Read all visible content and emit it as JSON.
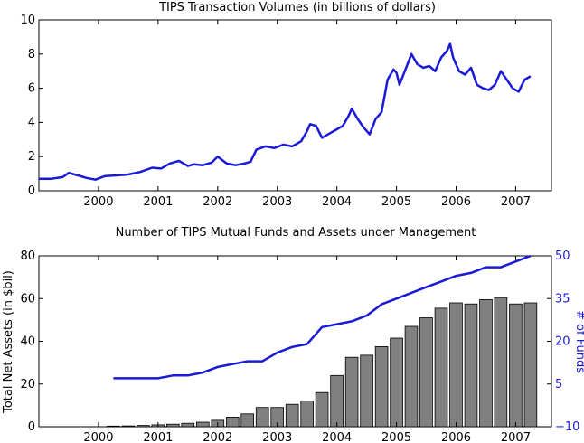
{
  "chart_data": [
    {
      "type": "line",
      "title": "TIPS Transaction Volumes (in billions of dollars)",
      "xlabel": "",
      "ylabel": "",
      "xlim": [
        1999.0,
        2007.6
      ],
      "ylim": [
        0,
        10
      ],
      "xticks": [
        2000,
        2001,
        2002,
        2003,
        2004,
        2005,
        2006,
        2007
      ],
      "xtick_labels": [
        "2000",
        "2001",
        "2002",
        "2003",
        "2004",
        "2005",
        "2006",
        "2007"
      ],
      "yticks": [
        0,
        2,
        4,
        6,
        8,
        10
      ],
      "ytick_labels": [
        "0",
        "2",
        "4",
        "6",
        "8",
        "10"
      ],
      "color": "#1a1ad6",
      "grid": false,
      "series": [
        {
          "x": [
            1999.0,
            1999.2,
            1999.4,
            1999.5,
            1999.6,
            1999.8,
            1999.95,
            2000.1,
            2000.3,
            2000.5,
            2000.7,
            2000.9,
            2001.05,
            2001.2,
            2001.35,
            2001.5,
            2001.6,
            2001.75,
            2001.9,
            2002.0,
            2002.15,
            2002.3,
            2002.45,
            2002.55,
            2002.65,
            2002.8,
            2002.95,
            2003.1,
            2003.25,
            2003.4,
            2003.5,
            2003.55,
            2003.65,
            2003.75,
            2003.9,
            2004.0,
            2004.1,
            2004.2,
            2004.25,
            2004.35,
            2004.45,
            2004.55,
            2004.65,
            2004.75,
            2004.85,
            2004.95,
            2005.0,
            2005.05,
            2005.15,
            2005.25,
            2005.35,
            2005.45,
            2005.55,
            2005.65,
            2005.75,
            2005.85,
            2005.9,
            2005.95,
            2006.05,
            2006.15,
            2006.25,
            2006.35,
            2006.45,
            2006.55,
            2006.65,
            2006.75,
            2006.85,
            2006.95,
            2007.05,
            2007.15,
            2007.25
          ],
          "y": [
            0.7,
            0.7,
            0.8,
            1.05,
            0.95,
            0.75,
            0.65,
            0.85,
            0.9,
            0.95,
            1.1,
            1.35,
            1.3,
            1.6,
            1.75,
            1.45,
            1.55,
            1.5,
            1.65,
            2.0,
            1.6,
            1.5,
            1.6,
            1.7,
            2.4,
            2.6,
            2.5,
            2.7,
            2.6,
            2.9,
            3.5,
            3.9,
            3.8,
            3.1,
            3.4,
            3.6,
            3.8,
            4.4,
            4.8,
            4.2,
            3.7,
            3.3,
            4.2,
            4.6,
            6.5,
            7.1,
            6.9,
            6.2,
            7.1,
            8.0,
            7.4,
            7.2,
            7.3,
            7.0,
            7.8,
            8.2,
            8.6,
            7.8,
            7.0,
            6.8,
            7.2,
            6.2,
            6.0,
            5.9,
            6.2,
            7.0,
            6.5,
            6.0,
            5.8,
            6.5,
            6.7
          ]
        }
      ]
    },
    {
      "type": "bar",
      "title": "Number of TIPS Mutual Funds and Assets under Management",
      "xlabel": "",
      "ylabel": "Total Net Assets (in $bil)",
      "ylabel_right": "# of Funds",
      "xlim": [
        1999.0,
        2007.6
      ],
      "ylim": [
        0,
        80
      ],
      "ylim_right": [
        -10,
        50
      ],
      "xticks": [
        2000,
        2001,
        2002,
        2003,
        2004,
        2005,
        2006,
        2007
      ],
      "xtick_labels": [
        "2000",
        "2001",
        "2002",
        "2003",
        "2004",
        "2005",
        "2006",
        "2007"
      ],
      "yticks": [
        0,
        20,
        40,
        60,
        80
      ],
      "ytick_labels": [
        "0",
        "20",
        "40",
        "60",
        "80"
      ],
      "yticks_right": [
        -10,
        5,
        20,
        35,
        50
      ],
      "ytick_labels_right": [
        "−10",
        "5",
        "20",
        "35",
        "50"
      ],
      "bar_color": "#808080",
      "line_color": "#1a1ad6",
      "grid": false,
      "bars": {
        "x": [
          2000.25,
          2000.5,
          2000.75,
          2001.0,
          2001.25,
          2001.5,
          2001.75,
          2002.0,
          2002.25,
          2002.5,
          2002.75,
          2003.0,
          2003.25,
          2003.5,
          2003.75,
          2004.0,
          2004.25,
          2004.5,
          2004.75,
          2005.0,
          2005.25,
          2005.5,
          2005.75,
          2006.0,
          2006.25,
          2006.5,
          2006.75,
          2007.0,
          2007.25
        ],
        "values": [
          0.3,
          0.4,
          0.6,
          0.9,
          1.2,
          1.6,
          2.1,
          3.0,
          4.5,
          6.0,
          9.0,
          9.0,
          10.5,
          12.0,
          16.0,
          24.0,
          32.5,
          33.5,
          37.5,
          41.5,
          47.0,
          51.0,
          55.5,
          58.0,
          57.5,
          59.5,
          60.5,
          57.5,
          58.0
        ]
      },
      "line": {
        "x": [
          2000.25,
          2001.0,
          2001.25,
          2001.5,
          2001.75,
          2002.0,
          2002.25,
          2002.5,
          2002.75,
          2003.0,
          2003.25,
          2003.5,
          2003.75,
          2004.0,
          2004.25,
          2004.5,
          2004.75,
          2005.0,
          2005.25,
          2005.5,
          2005.75,
          2006.0,
          2006.25,
          2006.5,
          2006.75,
          2007.0,
          2007.25
        ],
        "values": [
          7,
          7,
          8,
          8,
          9,
          11,
          12,
          13,
          13,
          16,
          18,
          19,
          25,
          26,
          27,
          29,
          33,
          35,
          37,
          39,
          41,
          43,
          44,
          46,
          46,
          48,
          50
        ]
      }
    }
  ]
}
